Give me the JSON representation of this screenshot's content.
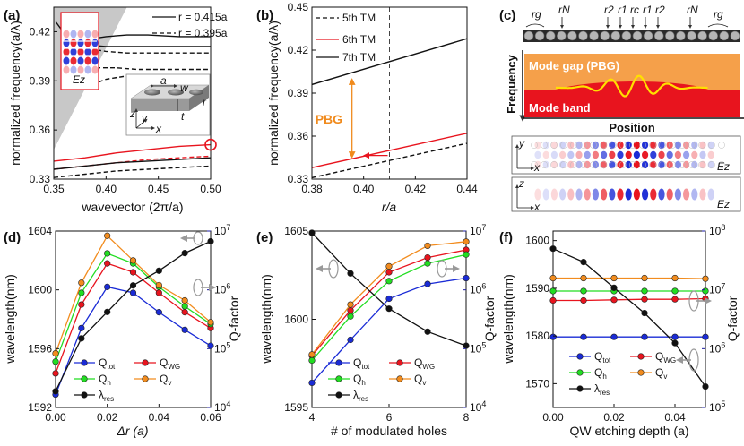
{
  "panels": [
    {
      "id": "a",
      "label": "(a)"
    },
    {
      "id": "b",
      "label": "(b)"
    },
    {
      "id": "c",
      "label": "(c)"
    },
    {
      "id": "d",
      "label": "(d)"
    },
    {
      "id": "e",
      "label": "(e)"
    },
    {
      "id": "f",
      "label": "(f)"
    }
  ],
  "colors": {
    "red": "#e8141e",
    "black": "#111111",
    "blue": "#1a2bd6",
    "green": "#22dd22",
    "orange": "#f28c1e",
    "rose": "#e8141e",
    "navy": "#1a1aa0",
    "gap_orange": "#f5a04a",
    "band_red": "#e8141e",
    "yellow": "#ffe000",
    "pbg_text": "#f08a1c"
  },
  "chart_data": [
    {
      "panel": "a",
      "type": "line",
      "xlabel": "wavevector (2π/a)",
      "ylabel": "normalized frequency(a/λ)",
      "xlim": [
        0.35,
        0.5
      ],
      "ylim": [
        0.33,
        0.435
      ],
      "xticks": [
        "0.35",
        "0.40",
        "0.45",
        "0.50"
      ],
      "yticks": [
        "0.33",
        "0.36",
        "0.39",
        "0.42"
      ],
      "legend": [
        {
          "label": "r = 0.415a",
          "style": "solid"
        },
        {
          "label": "r = 0.395a",
          "style": "dashed"
        }
      ],
      "inset_labels": {
        "field": "Ez",
        "a": "a",
        "w": "w",
        "r": "r",
        "t": "t",
        "z": "z",
        "y": "y",
        "x": "x"
      },
      "series": [
        {
          "color": "red",
          "style": "solid",
          "x": [
            0.35,
            0.38,
            0.41,
            0.44,
            0.47,
            0.5
          ],
          "y": [
            0.341,
            0.343,
            0.346,
            0.348,
            0.35,
            0.351
          ]
        },
        {
          "color": "red",
          "style": "dashed",
          "x": [
            0.35,
            0.38,
            0.41,
            0.44,
            0.47,
            0.5
          ],
          "y": [
            0.336,
            0.338,
            0.34,
            0.342,
            0.343,
            0.344
          ]
        },
        {
          "color": "black",
          "style": "solid",
          "x": [
            0.35,
            0.38,
            0.41,
            0.44,
            0.47,
            0.5
          ],
          "y": [
            0.336,
            0.338,
            0.34,
            0.341,
            0.342,
            0.343
          ]
        },
        {
          "color": "black",
          "style": "dashed",
          "x": [
            0.35,
            0.38,
            0.41,
            0.44,
            0.47,
            0.5
          ],
          "y": [
            0.331,
            0.333,
            0.335,
            0.336,
            0.337,
            0.338
          ]
        },
        {
          "color": "black",
          "style": "solid",
          "x": [
            0.352,
            0.36,
            0.37,
            0.38,
            0.4,
            0.42,
            0.44,
            0.47,
            0.5
          ],
          "y": [
            0.426,
            0.419,
            0.415,
            0.412,
            0.411,
            0.411,
            0.411,
            0.411,
            0.411
          ]
        },
        {
          "color": "black",
          "style": "solid",
          "x": [
            0.38,
            0.39,
            0.4,
            0.42,
            0.44,
            0.47,
            0.5
          ],
          "y": [
            0.418,
            0.416,
            0.417,
            0.418,
            0.418,
            0.417,
            0.417
          ]
        },
        {
          "color": "black",
          "style": "dashed",
          "x": [
            0.368,
            0.38,
            0.39,
            0.4,
            0.42,
            0.44,
            0.47,
            0.5
          ],
          "y": [
            0.418,
            0.412,
            0.409,
            0.408,
            0.407,
            0.407,
            0.407,
            0.407
          ]
        },
        {
          "color": "black",
          "style": "dashed",
          "x": [
            0.37,
            0.39,
            0.41,
            0.43,
            0.45,
            0.47,
            0.5
          ],
          "y": [
            0.4,
            0.398,
            0.398,
            0.397,
            0.397,
            0.397,
            0.397
          ]
        },
        {
          "color": "black",
          "style": "dashed",
          "x": [
            0.38,
            0.4,
            0.42,
            0.44,
            0.46,
            0.48,
            0.5
          ],
          "y": [
            0.386,
            0.391,
            0.393,
            0.393,
            0.393,
            0.393,
            0.393
          ]
        }
      ],
      "light_line": [
        [
          0.35,
          0.35
        ],
        [
          0.435,
          0.435
        ]
      ],
      "marker": {
        "x": 0.5,
        "y": 0.351,
        "color": "red"
      }
    },
    {
      "panel": "b",
      "type": "line",
      "xlabel": "r/a",
      "ylabel": "normalized frequency(a/λ)",
      "xlim": [
        0.38,
        0.44
      ],
      "ylim": [
        0.33,
        0.45
      ],
      "xticks": [
        "0.38",
        "0.40",
        "0.42",
        "0.44"
      ],
      "yticks": [
        "0.33",
        "0.36",
        "0.39",
        "0.42",
        "0.45"
      ],
      "series": [
        {
          "name": "5th TM",
          "color": "black",
          "style": "dashed",
          "x": [
            0.38,
            0.44
          ],
          "y": [
            0.331,
            0.355
          ]
        },
        {
          "name": "6th TM",
          "color": "red",
          "style": "solid",
          "x": [
            0.38,
            0.44
          ],
          "y": [
            0.338,
            0.362
          ]
        },
        {
          "name": "7th TM",
          "color": "black",
          "style": "solid",
          "x": [
            0.38,
            0.44
          ],
          "y": [
            0.396,
            0.428
          ]
        }
      ],
      "vline": 0.41,
      "annotation": "PBG",
      "pbg_range": [
        0.345,
        0.4
      ]
    },
    {
      "panel": "c",
      "type": "table",
      "labels": {
        "rg": "rg",
        "rN": "rN",
        "r2": "r2",
        "r1": "r1",
        "rc": "rc",
        "ylabel": "Frequency",
        "xlabel": "Position",
        "gap": "Mode gap (PBG)",
        "band": "Mode band",
        "field1": "Ez",
        "field2": "Ez",
        "y": "y",
        "x": "x",
        "z": "z"
      }
    },
    {
      "panel": "d",
      "type": "line",
      "xlabel": "Δr (a)",
      "ylabel": "wavelength(nm)",
      "y2label": "Q-factor",
      "xlim": [
        0,
        0.06
      ],
      "ylim": [
        1592,
        1604
      ],
      "y2log": [
        4,
        7
      ],
      "xticks": [
        "0.00",
        "0.02",
        "0.04",
        "0.06"
      ],
      "yticks": [
        "1592",
        "1596",
        "1600",
        "1604"
      ],
      "y2ticks": [
        "10^4",
        "10^5",
        "10^6",
        "10^7"
      ],
      "x": [
        0,
        0.01,
        0.02,
        0.03,
        0.04,
        0.05,
        0.06
      ],
      "series": [
        {
          "name": "Q_tot",
          "color": "blue",
          "axis": "right",
          "y": [
            4.22,
            5.35,
            6.05,
            5.95,
            5.62,
            5.32,
            5.05
          ]
        },
        {
          "name": "Q_WG",
          "color": "red",
          "axis": "right",
          "y": [
            4.58,
            5.75,
            6.45,
            6.3,
            5.95,
            5.62,
            5.35
          ]
        },
        {
          "name": "Q_h",
          "color": "green",
          "axis": "right",
          "y": [
            4.78,
            5.95,
            6.62,
            6.45,
            6.05,
            5.72,
            5.42
          ]
        },
        {
          "name": "Q_v",
          "color": "orange",
          "axis": "right",
          "y": [
            4.92,
            6.12,
            6.92,
            6.5,
            6.08,
            5.82,
            5.45
          ]
        },
        {
          "name": "λ_res",
          "color": "black",
          "axis": "left",
          "y": [
            1593.1,
            1596.7,
            1598.5,
            1600.3,
            1601.3,
            1602.5,
            1603.3
          ]
        }
      ],
      "legend": [
        "Q_tot",
        "Q_WG",
        "Q_h",
        "Q_v",
        "λ_res"
      ]
    },
    {
      "panel": "e",
      "type": "line",
      "xlabel": "# of modulated holes",
      "ylabel": "wavelength(nm)",
      "y2label": "Q-factor",
      "xlim": [
        4,
        8
      ],
      "ylim": [
        1595,
        1605
      ],
      "y2log": [
        4,
        7
      ],
      "xticks": [
        "4",
        "6",
        "8"
      ],
      "yticks": [
        "1595",
        "1600",
        "1605"
      ],
      "y2ticks": [
        "10^4",
        "10^5",
        "10^6",
        "10^7"
      ],
      "x": [
        4,
        5,
        6,
        7,
        8
      ],
      "series": [
        {
          "name": "Q_tot",
          "color": "blue",
          "axis": "right",
          "y": [
            4.42,
            5.15,
            5.85,
            6.1,
            6.2
          ]
        },
        {
          "name": "Q_WG",
          "color": "red",
          "axis": "right",
          "y": [
            4.88,
            5.65,
            6.3,
            6.55,
            6.68
          ]
        },
        {
          "name": "Q_h",
          "color": "green",
          "axis": "right",
          "y": [
            4.8,
            5.55,
            6.15,
            6.45,
            6.6
          ]
        },
        {
          "name": "Q_v",
          "color": "orange",
          "axis": "right",
          "y": [
            4.9,
            5.75,
            6.4,
            6.75,
            6.82
          ]
        },
        {
          "name": "λ_res",
          "color": "black",
          "axis": "left",
          "y": [
            1604.9,
            1602.6,
            1600.6,
            1599.3,
            1598.5
          ]
        }
      ],
      "legend": [
        "Q_tot",
        "Q_WG",
        "Q_h",
        "Q_v",
        "λ_res"
      ]
    },
    {
      "panel": "f",
      "type": "line",
      "xlabel": "QW etching depth (a)",
      "ylabel": "wavelength(nm)",
      "y2label": "Q-factor",
      "xlim": [
        0,
        0.05
      ],
      "ylim": [
        1565,
        1602
      ],
      "y2log": [
        5,
        8
      ],
      "xticks": [
        "0.00",
        "0.02",
        "0.04"
      ],
      "yticks": [
        "1570",
        "1580",
        "1590",
        "1600"
      ],
      "y2ticks": [
        "10^5",
        "10^6",
        "10^7",
        "10^8"
      ],
      "x": [
        0,
        0.01,
        0.02,
        0.03,
        0.04,
        0.05
      ],
      "series": [
        {
          "name": "Q_tot",
          "color": "blue",
          "axis": "right",
          "y": [
            6.2,
            6.2,
            6.2,
            6.2,
            6.2,
            6.2
          ]
        },
        {
          "name": "Q_WG",
          "color": "red",
          "axis": "right",
          "y": [
            6.82,
            6.82,
            6.83,
            6.84,
            6.84,
            6.85
          ]
        },
        {
          "name": "Q_h",
          "color": "green",
          "axis": "right",
          "y": [
            6.98,
            6.98,
            6.98,
            6.98,
            6.98,
            6.98
          ]
        },
        {
          "name": "Q_v",
          "color": "orange",
          "axis": "right",
          "y": [
            7.2,
            7.2,
            7.2,
            7.2,
            7.2,
            7.19
          ]
        },
        {
          "name": "λ_res",
          "color": "black",
          "axis": "left",
          "y": [
            1598.3,
            1595.5,
            1590.1,
            1584.8,
            1578.5,
            1569.4
          ]
        }
      ],
      "legend": [
        "Q_tot",
        "Q_WG",
        "Q_h",
        "Q_v",
        "λ_res"
      ]
    }
  ]
}
